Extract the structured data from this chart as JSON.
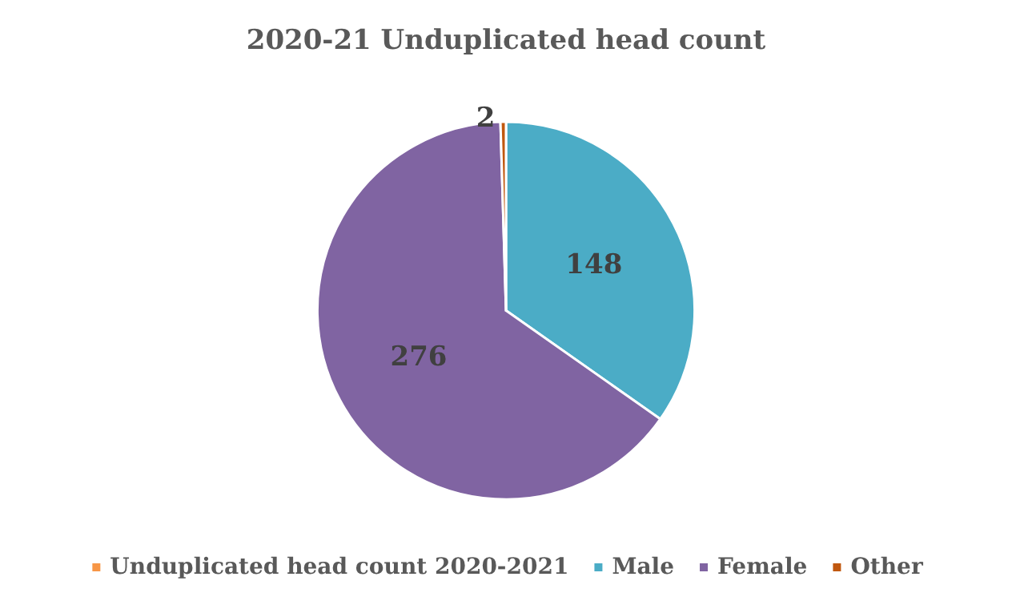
{
  "chart_data": {
    "type": "pie",
    "title": "2020-21 Unduplicated head count",
    "categories": [
      "Unduplicated head count 2020-2021",
      "Male",
      "Female",
      "Other"
    ],
    "values": [
      null,
      148,
      276,
      2
    ],
    "colors": [
      "#f79646",
      "#4bacc6",
      "#8064a2",
      "#c0580f"
    ],
    "data_labels": true,
    "legend": "bottom"
  }
}
